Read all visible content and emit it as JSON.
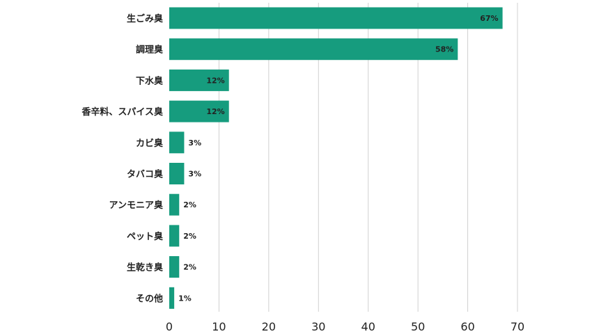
{
  "chart_data": {
    "type": "bar",
    "orientation": "horizontal",
    "categories": [
      "生ごみ臭",
      "調理臭",
      "下水臭",
      "香辛料、スパイス臭",
      "カビ臭",
      "タバコ臭",
      "アンモニア臭",
      "ペット臭",
      "生乾き臭",
      "その他"
    ],
    "values": [
      67,
      58,
      12,
      12,
      3,
      3,
      2,
      2,
      2,
      1
    ],
    "value_labels": [
      "67%",
      "58%",
      "12%",
      "12%",
      "3%",
      "3%",
      "2%",
      "2%",
      "2%",
      "1%"
    ],
    "xlim": [
      0,
      70
    ],
    "xticks": [
      "0",
      "10",
      "20",
      "30",
      "40",
      "50",
      "60",
      "70"
    ],
    "grid": "vertical",
    "bar_color": "#169c7e",
    "gridline_color": "#d0d0d0"
  }
}
